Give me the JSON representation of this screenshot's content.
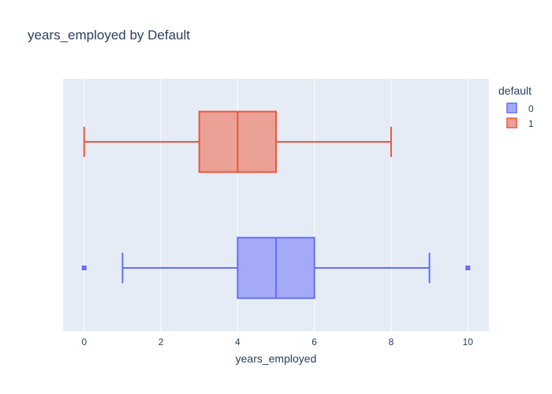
{
  "chart_data": {
    "type": "box",
    "title": "years_employed by Default",
    "xlabel": "years_employed",
    "ylabel": "",
    "orientation": "horizontal",
    "xlim": [
      -0.55,
      10.55
    ],
    "xticks": [
      0,
      2,
      4,
      6,
      8,
      10
    ],
    "grid": true,
    "legend": {
      "title": "default",
      "placement": "top-right"
    },
    "series": [
      {
        "name": "0",
        "color": "#636efa",
        "fill": "#a5aaf8",
        "min": 1,
        "q1": 4,
        "median": 5,
        "q3": 6,
        "max": 9,
        "outliers": [
          0,
          10
        ]
      },
      {
        "name": "1",
        "color": "#ef553b",
        "fill": "#eba196",
        "min": 0,
        "q1": 3,
        "median": 4,
        "q3": 5,
        "max": 8,
        "outliers": []
      }
    ]
  }
}
